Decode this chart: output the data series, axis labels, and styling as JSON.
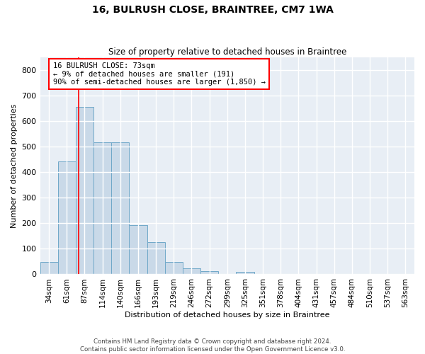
{
  "title": "16, BULRUSH CLOSE, BRAINTREE, CM7 1WA",
  "subtitle": "Size of property relative to detached houses in Braintree",
  "xlabel": "Distribution of detached houses by size in Braintree",
  "ylabel": "Number of detached properties",
  "bar_color": "#c9d9e8",
  "bar_edge_color": "#6fa8c8",
  "background_color": "#e8eef5",
  "grid_color": "#ffffff",
  "categories": [
    "34sqm",
    "61sqm",
    "87sqm",
    "114sqm",
    "140sqm",
    "166sqm",
    "193sqm",
    "219sqm",
    "246sqm",
    "272sqm",
    "299sqm",
    "325sqm",
    "351sqm",
    "378sqm",
    "404sqm",
    "431sqm",
    "457sqm",
    "484sqm",
    "510sqm",
    "537sqm",
    "563sqm"
  ],
  "values": [
    47,
    442,
    655,
    517,
    517,
    193,
    125,
    47,
    24,
    12,
    0,
    10,
    0,
    0,
    0,
    0,
    0,
    0,
    0,
    0,
    0
  ],
  "ylim": [
    0,
    850
  ],
  "yticks": [
    0,
    100,
    200,
    300,
    400,
    500,
    600,
    700,
    800
  ],
  "property_line_x": 1.67,
  "annotation_line1": "16 BULRUSH CLOSE: 73sqm",
  "annotation_line2": "← 9% of detached houses are smaller (191)",
  "annotation_line3": "90% of semi-detached houses are larger (1,850) →",
  "annotation_box_color": "white",
  "annotation_border_color": "red",
  "vline_color": "red",
  "footnote1": "Contains HM Land Registry data © Crown copyright and database right 2024.",
  "footnote2": "Contains public sector information licensed under the Open Government Licence v3.0."
}
